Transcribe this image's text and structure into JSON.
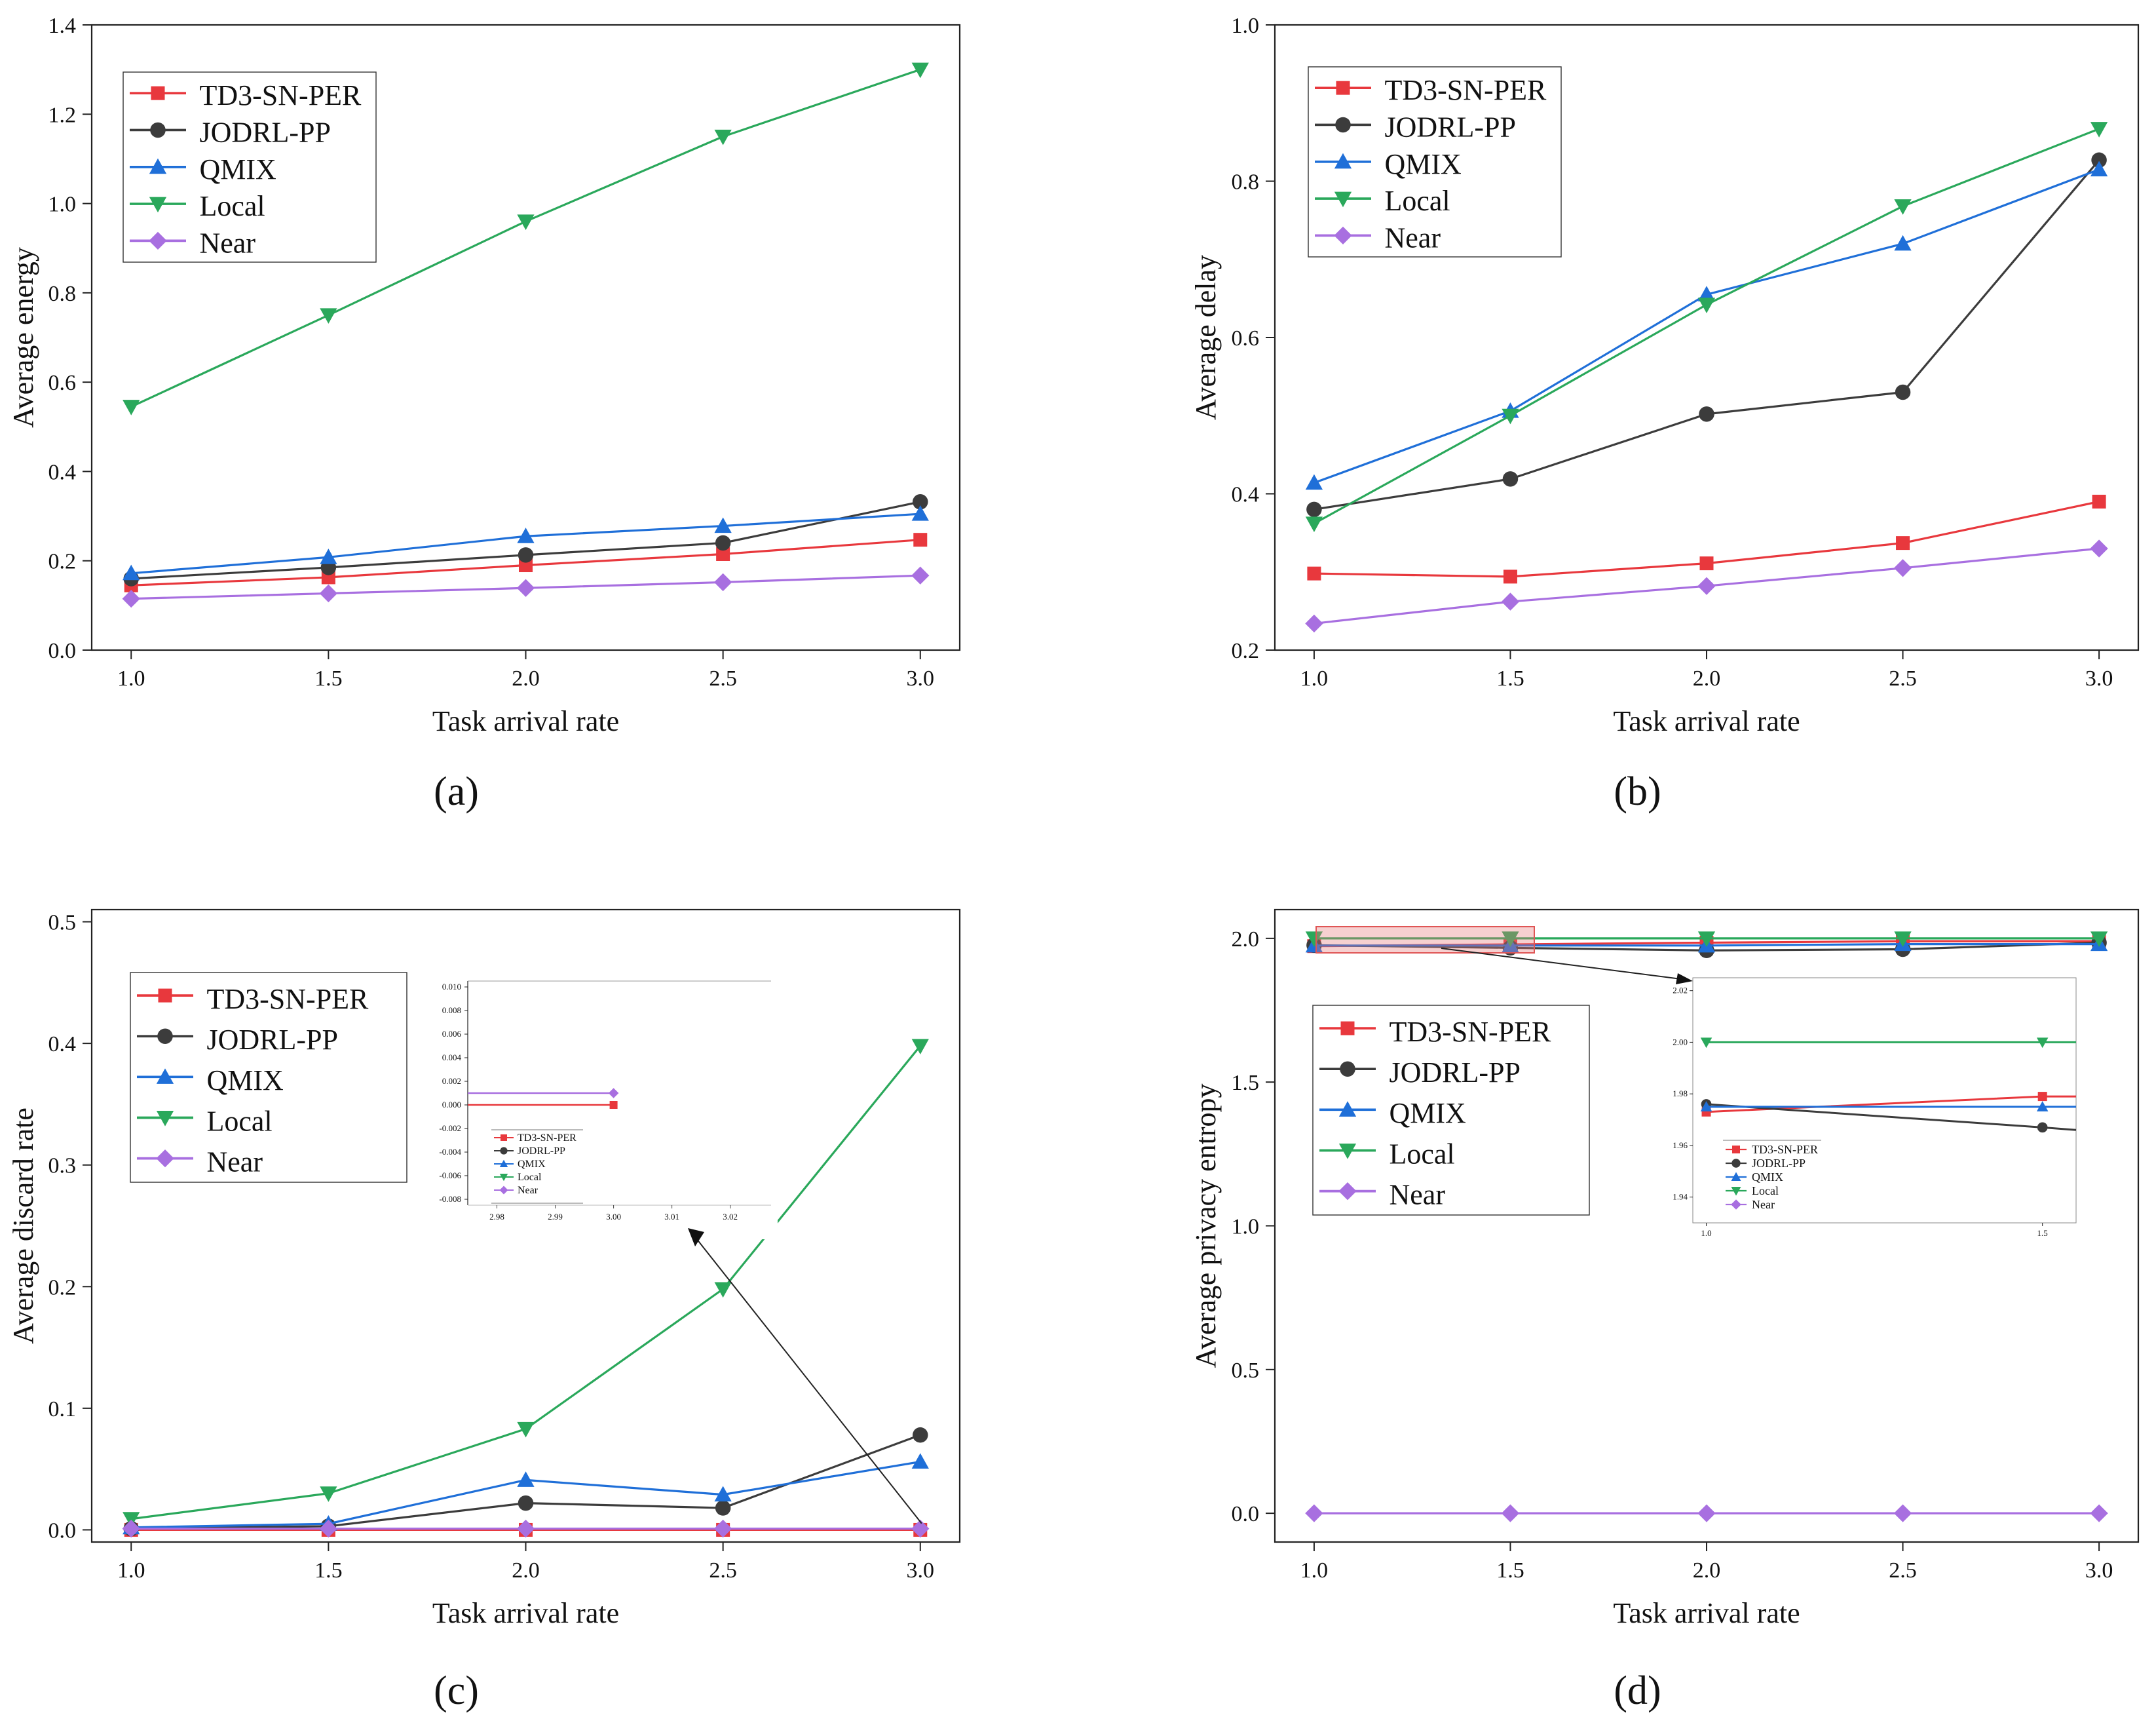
{
  "figure": {
    "legend_order": [
      "TD3-SN-PER",
      "JODRL-PP",
      "QMIX",
      "Local",
      "Near"
    ]
  },
  "series_styles": {
    "TD3-SN-PER": {
      "color": "#e8383d",
      "marker": "square"
    },
    "JODRL-PP": {
      "color": "#3c3c3c",
      "marker": "circle"
    },
    "QMIX": {
      "color": "#1f6fd8",
      "marker": "triangle-up"
    },
    "Local": {
      "color": "#2aa85b",
      "marker": "triangle-down"
    },
    "Near": {
      "color": "#a86fe0",
      "marker": "diamond"
    }
  },
  "chart_data": [
    {
      "panel": "(a)",
      "type": "line",
      "xlabel": "Task arrival rate",
      "ylabel": "Average energy",
      "x": [
        1.0,
        1.5,
        2.0,
        2.5,
        3.0
      ],
      "xlim": [
        0.9,
        3.1
      ],
      "ylim": [
        0.0,
        1.4
      ],
      "xticks": [
        "1.0",
        "1.5",
        "2.0",
        "2.5",
        "3.0"
      ],
      "yticks": [
        "0.0",
        "0.2",
        "0.4",
        "0.6",
        "0.8",
        "1.0",
        "1.2",
        "1.4"
      ],
      "legend": "top-left",
      "series": [
        {
          "name": "TD3-SN-PER",
          "values": [
            0.145,
            0.163,
            0.19,
            0.215,
            0.247
          ]
        },
        {
          "name": "JODRL-PP",
          "values": [
            0.16,
            0.185,
            0.213,
            0.24,
            0.332
          ]
        },
        {
          "name": "QMIX",
          "values": [
            0.172,
            0.208,
            0.255,
            0.278,
            0.305
          ]
        },
        {
          "name": "Local",
          "values": [
            0.545,
            0.75,
            0.96,
            1.15,
            1.3
          ]
        },
        {
          "name": "Near",
          "values": [
            0.115,
            0.127,
            0.139,
            0.152,
            0.167
          ]
        }
      ]
    },
    {
      "panel": "(b)",
      "type": "line",
      "xlabel": "Task arrival rate",
      "ylabel": "Average delay",
      "x": [
        1.0,
        1.5,
        2.0,
        2.5,
        3.0
      ],
      "xlim": [
        0.9,
        3.1
      ],
      "ylim": [
        0.2,
        1.0
      ],
      "xticks": [
        "1.0",
        "1.5",
        "2.0",
        "2.5",
        "3.0"
      ],
      "yticks": [
        "0.2",
        "0.4",
        "0.6",
        "0.8",
        "1.0"
      ],
      "legend": "top-left",
      "series": [
        {
          "name": "TD3-SN-PER",
          "values": [
            0.298,
            0.294,
            0.311,
            0.337,
            0.39
          ]
        },
        {
          "name": "JODRL-PP",
          "values": [
            0.38,
            0.419,
            0.502,
            0.53,
            0.827
          ]
        },
        {
          "name": "QMIX",
          "values": [
            0.414,
            0.506,
            0.655,
            0.72,
            0.815
          ]
        },
        {
          "name": "Local",
          "values": [
            0.362,
            0.5,
            0.642,
            0.768,
            0.867
          ]
        },
        {
          "name": "Near",
          "values": [
            0.234,
            0.262,
            0.282,
            0.305,
            0.33
          ]
        }
      ]
    },
    {
      "panel": "(c)",
      "type": "line",
      "xlabel": "Task arrival rate",
      "ylabel": "Average discard rate",
      "x": [
        1.0,
        1.5,
        2.0,
        2.5,
        3.0
      ],
      "xlim": [
        0.9,
        3.1
      ],
      "ylim": [
        -0.01,
        0.51
      ],
      "xticks": [
        "1.0",
        "1.5",
        "2.0",
        "2.5",
        "3.0"
      ],
      "yticks": [
        "0.0",
        "0.1",
        "0.2",
        "0.3",
        "0.4",
        "0.5"
      ],
      "legend": "upper-left",
      "series": [
        {
          "name": "TD3-SN-PER",
          "values": [
            0.0,
            0.0,
            0.0,
            0.0,
            0.0
          ]
        },
        {
          "name": "JODRL-PP",
          "values": [
            0.001,
            0.003,
            0.022,
            0.018,
            0.078
          ]
        },
        {
          "name": "QMIX",
          "values": [
            0.002,
            0.005,
            0.041,
            0.029,
            0.056
          ]
        },
        {
          "name": "Local",
          "values": [
            0.009,
            0.03,
            0.083,
            0.198,
            0.398
          ]
        },
        {
          "name": "Near",
          "values": [
            0.001,
            0.001,
            0.001,
            0.001,
            0.001
          ]
        }
      ],
      "inset": {
        "xlim": [
          2.975,
          3.027
        ],
        "ylim": [
          -0.0085,
          0.0105
        ],
        "xticks": [
          "2.98",
          "2.99",
          "3.00",
          "3.01",
          "3.02"
        ],
        "yticks": [
          "-0.008",
          "-0.006",
          "-0.004",
          "-0.002",
          "0.000",
          "0.002",
          "0.004",
          "0.006",
          "0.008",
          "0.010"
        ],
        "series": [
          {
            "name": "TD3-SN-PER",
            "x": [
              2.975,
              3.0
            ],
            "values": [
              0.0,
              0.0
            ]
          },
          {
            "name": "Near",
            "x": [
              2.975,
              3.0
            ],
            "values": [
              0.001,
              0.001
            ]
          }
        ]
      }
    },
    {
      "panel": "(d)",
      "type": "line",
      "xlabel": "Task arrival rate",
      "ylabel": "Average privacy entropy",
      "x": [
        1.0,
        1.5,
        2.0,
        2.5,
        3.0
      ],
      "xlim": [
        0.9,
        3.1
      ],
      "ylim": [
        -0.1,
        2.1
      ],
      "xticks": [
        "1.0",
        "1.5",
        "2.0",
        "2.5",
        "3.0"
      ],
      "yticks": [
        "0.0",
        "0.5",
        "1.0",
        "1.5",
        "2.0"
      ],
      "legend": "center-left",
      "series": [
        {
          "name": "TD3-SN-PER",
          "values": [
            1.973,
            1.979,
            1.985,
            1.99,
            1.99
          ]
        },
        {
          "name": "JODRL-PP",
          "values": [
            1.976,
            1.967,
            1.958,
            1.962,
            1.985
          ]
        },
        {
          "name": "QMIX",
          "values": [
            1.975,
            1.975,
            1.975,
            1.98,
            1.98
          ]
        },
        {
          "name": "Local",
          "values": [
            2.0,
            2.0,
            2.0,
            2.0,
            2.0
          ]
        },
        {
          "name": "Near",
          "values": [
            0.0,
            0.0,
            0.0,
            0.0,
            0.0
          ]
        }
      ],
      "inset": {
        "xlim": [
          0.98,
          1.55
        ],
        "ylim": [
          1.93,
          2.025
        ],
        "xticks": [
          "1.0",
          "1.5"
        ],
        "yticks": [
          "1.94",
          "1.96",
          "1.98",
          "2.00",
          "2.02"
        ],
        "series": [
          {
            "name": "TD3-SN-PER",
            "x": [
              1.0,
              1.5,
              1.55
            ],
            "values": [
              1.973,
              1.979,
              1.979
            ]
          },
          {
            "name": "JODRL-PP",
            "x": [
              1.0,
              1.5,
              1.55
            ],
            "values": [
              1.976,
              1.967,
              1.966
            ]
          },
          {
            "name": "QMIX",
            "x": [
              1.0,
              1.5,
              1.55
            ],
            "values": [
              1.975,
              1.975,
              1.975
            ]
          },
          {
            "name": "Local",
            "x": [
              1.0,
              1.5,
              1.55
            ],
            "values": [
              2.0,
              2.0,
              2.0
            ]
          }
        ]
      }
    }
  ]
}
